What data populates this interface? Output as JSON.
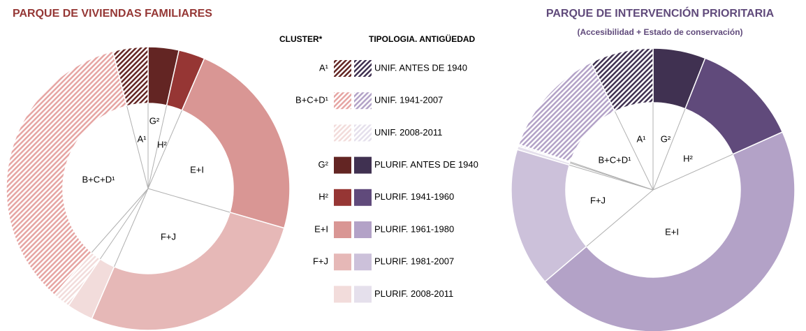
{
  "chart_data": [
    {
      "type": "donut",
      "title": "PARQUE DE VIVIENDAS FAMILIARES",
      "categories": [
        "UNIF. ANTES DE 1940",
        "UNIF. 1941-2007",
        "UNIF. 2008-2011",
        "PLURIF. ANTES DE 1940",
        "PLURIF. 1941-1960",
        "PLURIF. 1961-1980",
        "PLURIF. 1981-2007",
        "PLURIF. 2008-2011"
      ],
      "values": [
        4,
        34.5,
        2,
        3.5,
        3,
        23,
        27,
        3
      ],
      "colors": [
        "#632523",
        "#e6a5a3",
        "#f2dcdb",
        "#632523",
        "#963634",
        "#d99694",
        "#e6b8b7",
        "#f2dcdb"
      ],
      "hatched": [
        true,
        true,
        true,
        false,
        false,
        false,
        false,
        false
      ],
      "inner_labels": [
        "A¹",
        "G²",
        "H²",
        "E+I",
        "F+J",
        "B+C+D¹"
      ]
    },
    {
      "type": "donut",
      "title": "PARQUE DE INTERVENCIÓN PRIORITARIA",
      "subtitle": "(Accesibilidad  + Estado de conservación)",
      "values": [
        7.2,
        12.6,
        0.2,
        6,
        12.3,
        45.5,
        15.8,
        0.4
      ],
      "colors": [
        "#403151",
        "#b3a2c7",
        "#e5e0ec",
        "#403151",
        "#604a7b",
        "#b3a2c7",
        "#ccc1da",
        "#e5e0ec"
      ],
      "hatched": [
        true,
        true,
        true,
        false,
        false,
        false,
        false,
        false
      ],
      "inner_labels": [
        "A¹",
        "G²",
        "H²",
        "B+C+D¹",
        "F+J",
        "E+I"
      ]
    }
  ],
  "legend": {
    "cluster_header": "CLUSTER*",
    "typology_header": "TIPOLOGIA.  ANTIGÜEDAD",
    "clusters": [
      "A¹",
      "B+C+D¹",
      null,
      "G²",
      "H²",
      "E+I",
      "F+J",
      null
    ]
  }
}
